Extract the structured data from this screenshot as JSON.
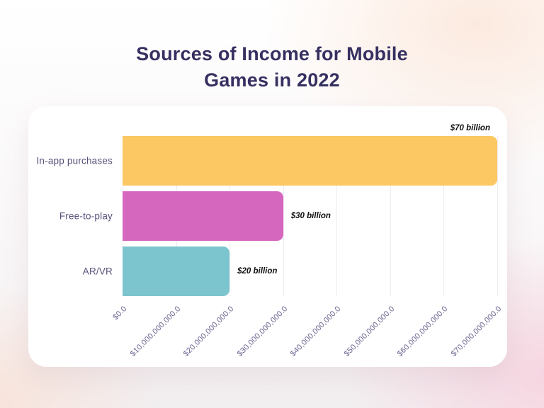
{
  "title": "Sources of Income for Mobile Games in 2022",
  "chart_data": {
    "type": "bar",
    "orientation": "horizontal",
    "title": "Sources of Income for Mobile Games in 2022",
    "categories": [
      "In-app purchases",
      "Free-to-play",
      "AR/VR"
    ],
    "values": [
      70000000000,
      30000000000,
      20000000000
    ],
    "value_labels": [
      "$70 billion",
      "$30 billion",
      "$20 billion"
    ],
    "value_label_positions": [
      "above-end",
      "right",
      "right"
    ],
    "bar_colors": [
      "#FBC863",
      "#D667BF",
      "#7CC5CE"
    ],
    "xlim": [
      0,
      70000000000
    ],
    "x_ticks": [
      0,
      10000000000,
      20000000000,
      30000000000,
      40000000000,
      50000000000,
      60000000000,
      70000000000
    ],
    "x_tick_labels": [
      "$0.0",
      "$10,000,000,000.0",
      "$20,000,000,000.0",
      "$30,000,000,000.0",
      "$40,000,000,000.0",
      "$50,000,000,000.0",
      "$60,000,000,000.0",
      "$70,000,000,000.0"
    ],
    "xlabel": "",
    "ylabel": "",
    "grid": "vertical",
    "legend": "none"
  },
  "colors": {
    "title_text": "#363061",
    "category_label": "#55517A",
    "tick_label": "#6A6590",
    "value_label": "#101010",
    "gridline": "#ECEBF2",
    "card_background": "#FFFFFF",
    "bar_in_app_purchases": "#FBC863",
    "bar_free_to_play": "#D667BF",
    "bar_ar_vr": "#7CC5CE"
  }
}
